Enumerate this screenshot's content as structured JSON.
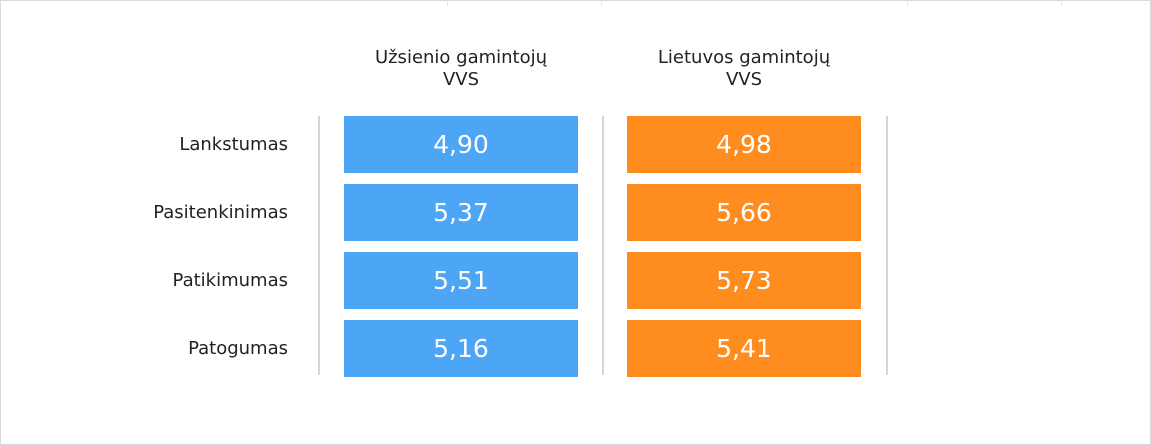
{
  "chart_data": {
    "type": "table",
    "columns": [
      "Užsienio gamintojų VVS",
      "Lietuvos gamintojų VVS"
    ],
    "column_header_lines": [
      [
        "Užsienio gamintojų",
        "VVS"
      ],
      [
        "Lietuvos gamintojų",
        "VVS"
      ]
    ],
    "column_colors": [
      "#4da6f5",
      "#ff8c1f"
    ],
    "rows": [
      {
        "label": "Lankstumas",
        "values": [
          "4,90",
          "4,98"
        ]
      },
      {
        "label": "Pasitenkinimas",
        "values": [
          "5,37",
          "5,66"
        ]
      },
      {
        "label": "Patikimumas",
        "values": [
          "5,51",
          "5,73"
        ]
      },
      {
        "label": "Patogumas",
        "values": [
          "5,16",
          "5,41"
        ]
      }
    ]
  }
}
